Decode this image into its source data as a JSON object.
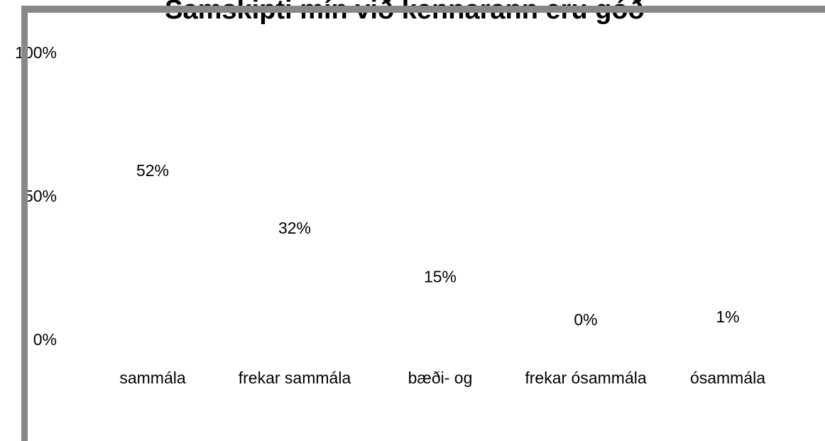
{
  "chart_data": {
    "type": "bar",
    "title": "Samskipti mín við kennarann eru góð",
    "categories": [
      "sammála",
      "frekar sammála",
      "bæði- og",
      "frekar ósammála",
      "ósammála"
    ],
    "values": [
      52,
      32,
      15,
      0,
      1
    ],
    "value_labels": [
      "52%",
      "32%",
      "15%",
      "0%",
      "1%"
    ],
    "ylim": [
      0,
      100
    ],
    "yticks": [
      {
        "value": 0,
        "label": "0%"
      },
      {
        "value": 50,
        "label": "50%"
      },
      {
        "value": 100,
        "label": "100%"
      }
    ]
  }
}
